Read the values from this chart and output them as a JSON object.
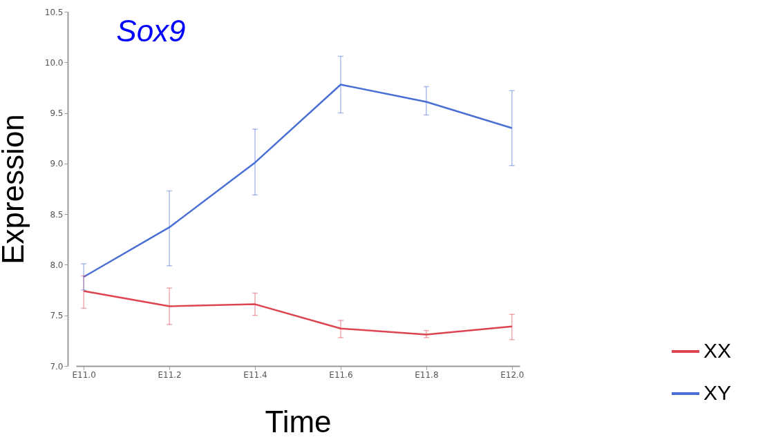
{
  "chart_data": {
    "type": "line",
    "title": "Sox9",
    "xlabel": "Time",
    "ylabel": "Expression",
    "categories": [
      "E11.0",
      "E11.2",
      "E11.4",
      "E11.6",
      "E11.8",
      "E12.0"
    ],
    "series": [
      {
        "name": "XX",
        "color": "#dd4450",
        "values": [
          7.74,
          7.59,
          7.61,
          7.37,
          7.31,
          7.39
        ],
        "errors": [
          [
            7.57,
            7.89
          ],
          [
            7.41,
            7.77
          ],
          [
            7.5,
            7.72
          ],
          [
            7.28,
            7.45
          ],
          [
            7.28,
            7.35
          ],
          [
            7.26,
            7.51
          ]
        ]
      },
      {
        "name": "XY",
        "color": "#4a6fd4",
        "values": [
          7.88,
          8.37,
          9.01,
          9.78,
          9.61,
          9.35
        ],
        "errors": [
          [
            7.75,
            8.01
          ],
          [
            7.99,
            8.73
          ],
          [
            8.69,
            9.34
          ],
          [
            9.5,
            10.06
          ],
          [
            9.48,
            9.76
          ],
          [
            8.98,
            9.72
          ]
        ]
      }
    ],
    "ylim": [
      7.0,
      10.5
    ],
    "yticks": [
      {
        "value": 7.0,
        "label": "7.0"
      },
      {
        "value": 7.5,
        "label": "7.5"
      },
      {
        "value": 8.0,
        "label": "8.0"
      },
      {
        "value": 8.5,
        "label": "8.5"
      },
      {
        "value": 9.0,
        "label": "9.0"
      },
      {
        "value": 9.5,
        "label": "9.5"
      },
      {
        "value": 10.0,
        "label": "10.0"
      },
      {
        "value": 10.5,
        "label": "10.5"
      }
    ],
    "grid": false,
    "legend": "bottom right",
    "marker": "none",
    "line_style": "solid"
  }
}
